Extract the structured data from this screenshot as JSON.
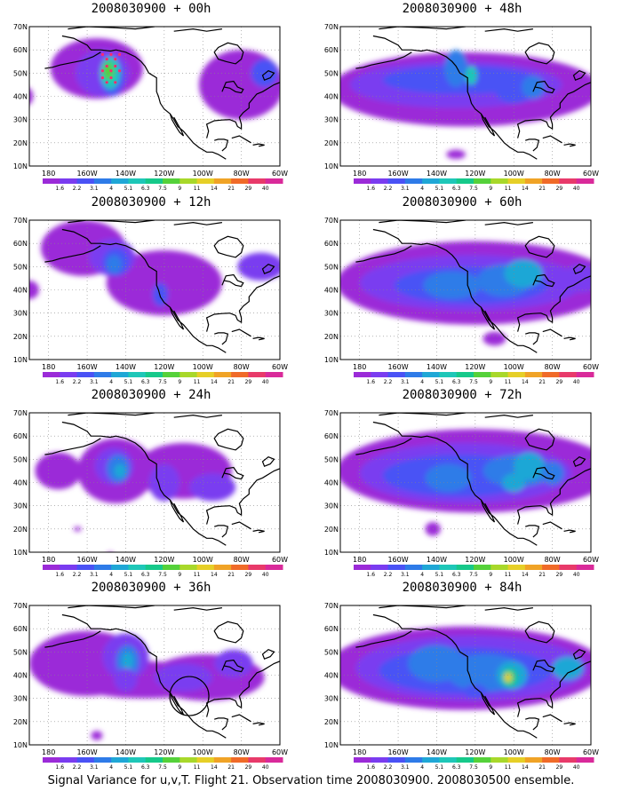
{
  "caption": "Signal Variance for u,v,T. Flight 21. Observation time 2008030900. 2008030500 ensemble.",
  "lat_labels": [
    "70N",
    "60N",
    "50N",
    "40N",
    "30N",
    "20N",
    "10N"
  ],
  "lon_labels": [
    "180",
    "160W",
    "140W",
    "120W",
    "100W",
    "80W",
    "60W"
  ],
  "colorbar": {
    "labels": [
      "1.6",
      "2.2",
      "3.1",
      "4",
      "5.1",
      "6.3",
      "7.5",
      "9",
      "11",
      "14",
      "21",
      "29",
      "40"
    ],
    "colors": [
      "#9b2bd8",
      "#7a3cf0",
      "#4a52f5",
      "#2e7be8",
      "#1fa7d6",
      "#1ec7b8",
      "#16c98a",
      "#55d13a",
      "#a8d82a",
      "#e6cf27",
      "#f0a326",
      "#f06a28",
      "#e83a6a",
      "#d92a9a"
    ]
  },
  "colors": {
    "background": "#ffffff",
    "land_outline": "#000000",
    "grid": "#888888",
    "track_points": "#ff2a6e",
    "highlight_circle": "#000000"
  },
  "panels": [
    {
      "title": "2008030900 + 00h"
    },
    {
      "title": "2008030900 + 48h"
    },
    {
      "title": "2008030900 + 12h"
    },
    {
      "title": "2008030900 + 60h"
    },
    {
      "title": "2008030900 + 24h"
    },
    {
      "title": "2008030900 + 72h"
    },
    {
      "title": "2008030900 + 36h"
    },
    {
      "title": "2008030900 + 84h"
    }
  ]
}
